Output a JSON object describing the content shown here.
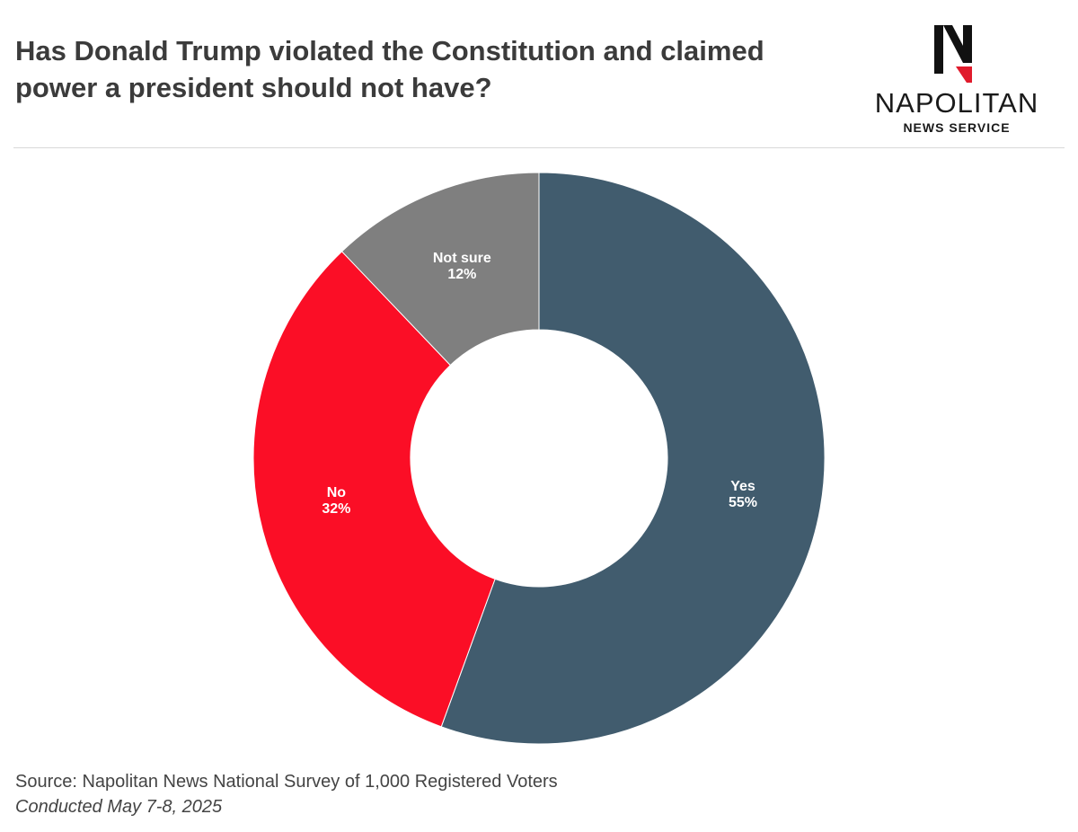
{
  "header": {
    "title": "Has Donald Trump violated the Constitution and claimed power a president should not have?"
  },
  "logo": {
    "mark_letter": "N",
    "name": "NAPOLITAN",
    "subtitle": "NEWS SERVICE",
    "icon": "napolitan-eagle-icon"
  },
  "chart_data": {
    "type": "pie",
    "variant": "donut",
    "title": "Has Donald Trump violated the Constitution and claimed power a president should not have?",
    "categories": [
      "Yes",
      "No",
      "Not sure"
    ],
    "values": [
      55,
      32,
      12
    ],
    "value_labels": [
      "55%",
      "32%",
      "12%"
    ],
    "colors": [
      "#415c6e",
      "#fb0e26",
      "#7f7f7f"
    ],
    "start": "12 o'clock, clockwise",
    "legend": "none"
  },
  "footer": {
    "source": "Source: Napolitan News National Survey of 1,000 Registered Voters",
    "conducted": "Conducted May 7-8, 2025"
  }
}
